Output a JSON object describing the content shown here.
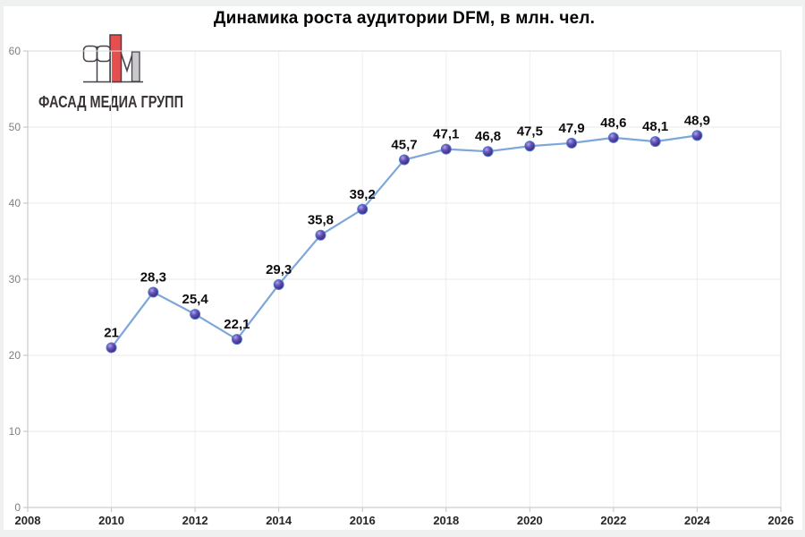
{
  "window": {
    "background": "#eff0f0",
    "panel_background": "#ffffff"
  },
  "logo": {
    "text": "ФАСАД МЕДИА ГРУПП",
    "text_color": "#3a3338",
    "mark": {
      "red_bar_color": "#e5504f",
      "gray_leg_color": "#c9c9cd",
      "glasses_fill": "#ffffff",
      "outline_color": "#47414b"
    }
  },
  "chart_data": {
    "type": "line",
    "title": "Динамика роста аудитории DFM, в млн. чел.",
    "x": [
      2010,
      2011,
      2012,
      2013,
      2014,
      2015,
      2016,
      2017,
      2018,
      2019,
      2020,
      2021,
      2022,
      2023,
      2024
    ],
    "values": [
      21,
      28.3,
      25.4,
      22.1,
      29.3,
      35.8,
      39.2,
      45.7,
      47.1,
      46.8,
      47.5,
      47.9,
      48.6,
      48.1,
      48.9
    ],
    "point_labels": [
      "21",
      "28,3",
      "25,4",
      "22,1",
      "29,3",
      "35,8",
      "39,2",
      "45,7",
      "47,1",
      "46,8",
      "47,5",
      "47,9",
      "48,6",
      "48,1",
      "48,9"
    ],
    "x_ticks": [
      2008,
      2010,
      2012,
      2014,
      2016,
      2018,
      2020,
      2022,
      2024,
      2026
    ],
    "y_ticks": [
      0,
      10,
      20,
      30,
      40,
      50,
      60
    ],
    "xlim": [
      2008,
      2026
    ],
    "ylim": [
      0,
      60
    ],
    "grid": true,
    "legend_position": "none",
    "xlabel": "",
    "ylabel": "",
    "styles": {
      "line_color": "#7da6da",
      "marker_highlight": "#b3a6e8",
      "marker_mid": "#6a55bc",
      "marker_dark": "#31227a",
      "marker_stroke": "#4d79c8",
      "hgrid_color": "#e8e8e8",
      "vgrid_color": "#efefef",
      "axis_color": "#c2c2c2",
      "border_color": "#d9d9d9",
      "x_label_color": "#262626",
      "y_label_color": "#7f7f7f",
      "data_label_color": "#0d0d0d"
    }
  }
}
